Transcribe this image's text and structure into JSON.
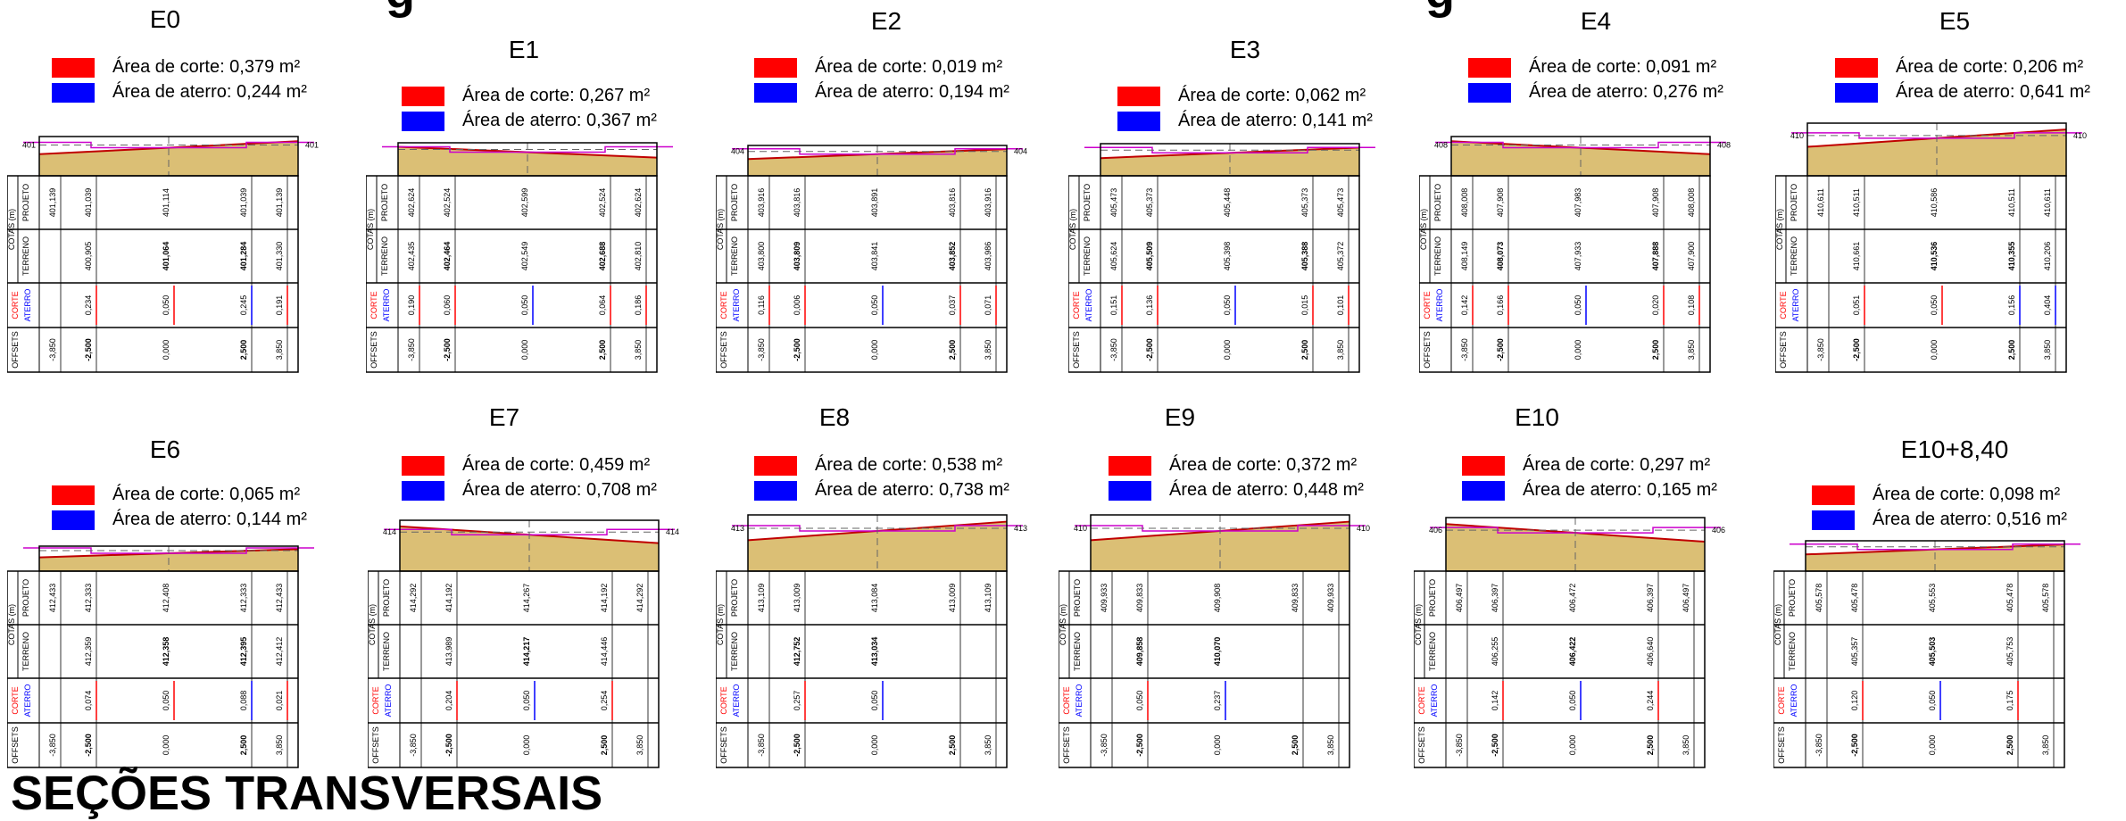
{
  "header_fragments": {
    "top_left": "g",
    "top_right": "g",
    "bottom_left": "SEÇÕES TRANSVERSAIS"
  },
  "legend_labels": {
    "corte": "Área de corte:",
    "aterro": "Área de aterro:"
  },
  "table_labels": {
    "cotas": "COTAS (m)",
    "projeto": "PROJETO",
    "terreno": "TERRENO",
    "corte": "CORTE",
    "aterro": "ATERRO",
    "offsets": "OFFSETS"
  },
  "colors": {
    "corte": "#ff0000",
    "aterro": "#0000ff",
    "terrain_fill": "#dbbf75",
    "project_line": "#cc00cc",
    "terrain_line": "#c00000"
  },
  "sections": [
    {
      "name": "E0",
      "elev_label": "401",
      "corte_area": "0,379 m²",
      "aterro_area": "0,244 m²",
      "projeto": [
        "401,139",
        "401,039",
        "401,114",
        "401,039",
        "401,139"
      ],
      "terreno": [
        "400,905",
        "401,064",
        "401,284",
        "401,330"
      ],
      "corte": [
        "0,234",
        "0,050",
        "0,245",
        "0,191"
      ],
      "offsets": [
        "-3,850",
        "-2,500",
        "0,000",
        "2,500",
        "3,850"
      ]
    },
    {
      "name": "E1",
      "elev_label": "",
      "corte_area": "0,267 m²",
      "aterro_area": "0,367 m²",
      "projeto": [
        "402,624",
        "402,524",
        "402,599",
        "402,524",
        "402,624"
      ],
      "terreno": [
        "402,435",
        "402,464",
        "402,549",
        "402,688",
        "402,810"
      ],
      "corte": [
        "0,190",
        "0,060",
        "0,050",
        "0,064",
        "0,186"
      ],
      "offsets": [
        "-3,850",
        "-2,500",
        "0,000",
        "2,500",
        "3,850"
      ]
    },
    {
      "name": "E2",
      "elev_label": "404",
      "corte_area": "0,019 m²",
      "aterro_area": "0,194 m²",
      "projeto": [
        "403,916",
        "403,816",
        "403,891",
        "403,816",
        "403,916"
      ],
      "terreno": [
        "403,800",
        "403,809",
        "403,841",
        "403,852",
        "403,986"
      ],
      "corte": [
        "0,116",
        "0,006",
        "0,050",
        "0,037",
        "0,071"
      ],
      "offsets": [
        "-3,850",
        "-2,500",
        "0,000",
        "2,500",
        "3,850"
      ]
    },
    {
      "name": "E3",
      "elev_label": "",
      "corte_area": "0,062 m²",
      "aterro_area": "0,141 m²",
      "projeto": [
        "405,473",
        "405,373",
        "405,448",
        "405,373",
        "405,473"
      ],
      "terreno": [
        "405,624",
        "405,509",
        "405,398",
        "405,388",
        "405,372"
      ],
      "corte": [
        "0,151",
        "0,136",
        "0,050",
        "0,015",
        "0,101"
      ],
      "offsets": [
        "-3,850",
        "-2,500",
        "0,000",
        "2,500",
        "3,850"
      ]
    },
    {
      "name": "E4",
      "elev_label": "408",
      "corte_area": "0,091 m²",
      "aterro_area": "0,276 m²",
      "projeto": [
        "408,008",
        "407,908",
        "407,983",
        "407,908",
        "408,008"
      ],
      "terreno": [
        "408,149",
        "408,073",
        "407,933",
        "407,888",
        "407,900"
      ],
      "corte": [
        "0,142",
        "0,166",
        "0,050",
        "0,020",
        "0,108"
      ],
      "offsets": [
        "-3,850",
        "-2,500",
        "0,000",
        "2,500",
        "3,850"
      ]
    },
    {
      "name": "E5",
      "elev_label": "410",
      "corte_area": "0,206 m²",
      "aterro_area": "0,641 m²",
      "projeto": [
        "410,611",
        "410,511",
        "410,586",
        "410,511",
        "410,611"
      ],
      "terreno": [
        "410,661",
        "410,536",
        "410,355",
        "410,206"
      ],
      "corte": [
        "0,051",
        "0,050",
        "0,156",
        "0,404"
      ],
      "offsets": [
        "-3,850",
        "-2,500",
        "0,000",
        "2,500",
        "3,850"
      ]
    },
    {
      "name": "E6",
      "elev_label": "",
      "corte_area": "0,065 m²",
      "aterro_area": "0,144 m²",
      "projeto": [
        "412,433",
        "412,333",
        "412,408",
        "412,333",
        "412,433"
      ],
      "terreno": [
        "412,359",
        "412,358",
        "412,395",
        "412,412"
      ],
      "corte": [
        "0,074",
        "0,050",
        "0,088",
        "0,021"
      ],
      "offsets": [
        "-3,850",
        "-2,500",
        "0,000",
        "2,500",
        "3,850"
      ]
    },
    {
      "name": "E7",
      "elev_label": "414",
      "corte_area": "0,459 m²",
      "aterro_area": "0,708 m²",
      "projeto": [
        "414,292",
        "414,192",
        "414,267",
        "414,192",
        "414,292"
      ],
      "terreno": [
        "413,989",
        "414,217",
        "414,446"
      ],
      "corte": [
        "0,204",
        "0,050",
        "0,254"
      ],
      "offsets": [
        "-3,850",
        "-2,500",
        "0,000",
        "2,500",
        "3,850"
      ]
    },
    {
      "name": "E8",
      "elev_label": "413",
      "corte_area": "0,538 m²",
      "aterro_area": "0,738 m²",
      "projeto": [
        "413,109",
        "413,009",
        "413,084",
        "413,009",
        "413,109"
      ],
      "terreno": [
        "412,752",
        "413,034"
      ],
      "corte": [
        "0,257",
        "0,050"
      ],
      "offsets": [
        "-3,850",
        "-2,500",
        "0,000",
        "2,500",
        "3,850"
      ]
    },
    {
      "name": "E9",
      "elev_label": "410",
      "corte_area": "0,372 m²",
      "aterro_area": "0,448 m²",
      "projeto": [
        "409,933",
        "409,833",
        "409,908",
        "409,833",
        "409,933"
      ],
      "terreno": [
        "409,858",
        "410,070"
      ],
      "corte": [
        "0,050",
        "0,237"
      ],
      "offsets": [
        "-3,850",
        "-2,500",
        "0,000",
        "2,500",
        "3,850"
      ]
    },
    {
      "name": "E10",
      "elev_label": "406",
      "corte_area": "0,297 m²",
      "aterro_area": "0,165 m²",
      "projeto": [
        "406,497",
        "406,397",
        "406,472",
        "406,397",
        "406,497"
      ],
      "terreno": [
        "406,255",
        "406,422",
        "406,640"
      ],
      "corte": [
        "0,142",
        "0,050",
        "0,244"
      ],
      "offsets": [
        "-3,850",
        "-2,500",
        "0,000",
        "2,500",
        "3,850"
      ]
    },
    {
      "name": "E10+8,40",
      "elev_label": "",
      "corte_area": "0,098 m²",
      "aterro_area": "0,516 m²",
      "projeto": [
        "405,578",
        "405,478",
        "405,553",
        "405,478",
        "405,578"
      ],
      "terreno": [
        "405,357",
        "405,503",
        "405,753"
      ],
      "corte": [
        "0,120",
        "0,050",
        "0,175"
      ],
      "offsets": [
        "-3,850",
        "-2,500",
        "0,000",
        "2,500",
        "3,850"
      ]
    }
  ]
}
